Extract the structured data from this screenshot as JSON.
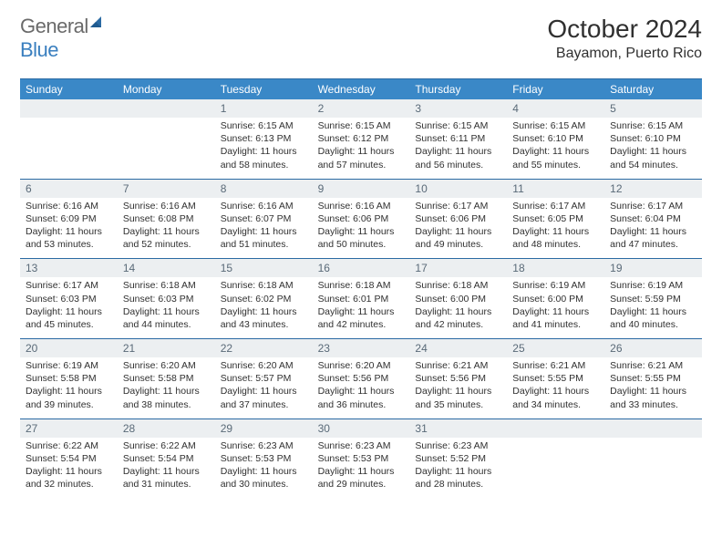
{
  "logo": {
    "word1": "General",
    "word2": "Blue",
    "icon_color": "#2b6aa3"
  },
  "title": "October 2024",
  "location": "Bayamon, Puerto Rico",
  "colors": {
    "header_bar": "#3a88c7",
    "header_border": "#2b6aa3",
    "daynum_bg": "#eceff1",
    "text": "#303030",
    "weekday_text": "#ffffff",
    "daynum_text": "#5a6a78"
  },
  "weekdays": [
    "Sunday",
    "Monday",
    "Tuesday",
    "Wednesday",
    "Thursday",
    "Friday",
    "Saturday"
  ],
  "weeks": [
    [
      {
        "num": "",
        "sunrise": "",
        "sunset": "",
        "daylight": ""
      },
      {
        "num": "",
        "sunrise": "",
        "sunset": "",
        "daylight": ""
      },
      {
        "num": "1",
        "sunrise": "Sunrise: 6:15 AM",
        "sunset": "Sunset: 6:13 PM",
        "daylight": "Daylight: 11 hours and 58 minutes."
      },
      {
        "num": "2",
        "sunrise": "Sunrise: 6:15 AM",
        "sunset": "Sunset: 6:12 PM",
        "daylight": "Daylight: 11 hours and 57 minutes."
      },
      {
        "num": "3",
        "sunrise": "Sunrise: 6:15 AM",
        "sunset": "Sunset: 6:11 PM",
        "daylight": "Daylight: 11 hours and 56 minutes."
      },
      {
        "num": "4",
        "sunrise": "Sunrise: 6:15 AM",
        "sunset": "Sunset: 6:10 PM",
        "daylight": "Daylight: 11 hours and 55 minutes."
      },
      {
        "num": "5",
        "sunrise": "Sunrise: 6:15 AM",
        "sunset": "Sunset: 6:10 PM",
        "daylight": "Daylight: 11 hours and 54 minutes."
      }
    ],
    [
      {
        "num": "6",
        "sunrise": "Sunrise: 6:16 AM",
        "sunset": "Sunset: 6:09 PM",
        "daylight": "Daylight: 11 hours and 53 minutes."
      },
      {
        "num": "7",
        "sunrise": "Sunrise: 6:16 AM",
        "sunset": "Sunset: 6:08 PM",
        "daylight": "Daylight: 11 hours and 52 minutes."
      },
      {
        "num": "8",
        "sunrise": "Sunrise: 6:16 AM",
        "sunset": "Sunset: 6:07 PM",
        "daylight": "Daylight: 11 hours and 51 minutes."
      },
      {
        "num": "9",
        "sunrise": "Sunrise: 6:16 AM",
        "sunset": "Sunset: 6:06 PM",
        "daylight": "Daylight: 11 hours and 50 minutes."
      },
      {
        "num": "10",
        "sunrise": "Sunrise: 6:17 AM",
        "sunset": "Sunset: 6:06 PM",
        "daylight": "Daylight: 11 hours and 49 minutes."
      },
      {
        "num": "11",
        "sunrise": "Sunrise: 6:17 AM",
        "sunset": "Sunset: 6:05 PM",
        "daylight": "Daylight: 11 hours and 48 minutes."
      },
      {
        "num": "12",
        "sunrise": "Sunrise: 6:17 AM",
        "sunset": "Sunset: 6:04 PM",
        "daylight": "Daylight: 11 hours and 47 minutes."
      }
    ],
    [
      {
        "num": "13",
        "sunrise": "Sunrise: 6:17 AM",
        "sunset": "Sunset: 6:03 PM",
        "daylight": "Daylight: 11 hours and 45 minutes."
      },
      {
        "num": "14",
        "sunrise": "Sunrise: 6:18 AM",
        "sunset": "Sunset: 6:03 PM",
        "daylight": "Daylight: 11 hours and 44 minutes."
      },
      {
        "num": "15",
        "sunrise": "Sunrise: 6:18 AM",
        "sunset": "Sunset: 6:02 PM",
        "daylight": "Daylight: 11 hours and 43 minutes."
      },
      {
        "num": "16",
        "sunrise": "Sunrise: 6:18 AM",
        "sunset": "Sunset: 6:01 PM",
        "daylight": "Daylight: 11 hours and 42 minutes."
      },
      {
        "num": "17",
        "sunrise": "Sunrise: 6:18 AM",
        "sunset": "Sunset: 6:00 PM",
        "daylight": "Daylight: 11 hours and 42 minutes."
      },
      {
        "num": "18",
        "sunrise": "Sunrise: 6:19 AM",
        "sunset": "Sunset: 6:00 PM",
        "daylight": "Daylight: 11 hours and 41 minutes."
      },
      {
        "num": "19",
        "sunrise": "Sunrise: 6:19 AM",
        "sunset": "Sunset: 5:59 PM",
        "daylight": "Daylight: 11 hours and 40 minutes."
      }
    ],
    [
      {
        "num": "20",
        "sunrise": "Sunrise: 6:19 AM",
        "sunset": "Sunset: 5:58 PM",
        "daylight": "Daylight: 11 hours and 39 minutes."
      },
      {
        "num": "21",
        "sunrise": "Sunrise: 6:20 AM",
        "sunset": "Sunset: 5:58 PM",
        "daylight": "Daylight: 11 hours and 38 minutes."
      },
      {
        "num": "22",
        "sunrise": "Sunrise: 6:20 AM",
        "sunset": "Sunset: 5:57 PM",
        "daylight": "Daylight: 11 hours and 37 minutes."
      },
      {
        "num": "23",
        "sunrise": "Sunrise: 6:20 AM",
        "sunset": "Sunset: 5:56 PM",
        "daylight": "Daylight: 11 hours and 36 minutes."
      },
      {
        "num": "24",
        "sunrise": "Sunrise: 6:21 AM",
        "sunset": "Sunset: 5:56 PM",
        "daylight": "Daylight: 11 hours and 35 minutes."
      },
      {
        "num": "25",
        "sunrise": "Sunrise: 6:21 AM",
        "sunset": "Sunset: 5:55 PM",
        "daylight": "Daylight: 11 hours and 34 minutes."
      },
      {
        "num": "26",
        "sunrise": "Sunrise: 6:21 AM",
        "sunset": "Sunset: 5:55 PM",
        "daylight": "Daylight: 11 hours and 33 minutes."
      }
    ],
    [
      {
        "num": "27",
        "sunrise": "Sunrise: 6:22 AM",
        "sunset": "Sunset: 5:54 PM",
        "daylight": "Daylight: 11 hours and 32 minutes."
      },
      {
        "num": "28",
        "sunrise": "Sunrise: 6:22 AM",
        "sunset": "Sunset: 5:54 PM",
        "daylight": "Daylight: 11 hours and 31 minutes."
      },
      {
        "num": "29",
        "sunrise": "Sunrise: 6:23 AM",
        "sunset": "Sunset: 5:53 PM",
        "daylight": "Daylight: 11 hours and 30 minutes."
      },
      {
        "num": "30",
        "sunrise": "Sunrise: 6:23 AM",
        "sunset": "Sunset: 5:53 PM",
        "daylight": "Daylight: 11 hours and 29 minutes."
      },
      {
        "num": "31",
        "sunrise": "Sunrise: 6:23 AM",
        "sunset": "Sunset: 5:52 PM",
        "daylight": "Daylight: 11 hours and 28 minutes."
      },
      {
        "num": "",
        "sunrise": "",
        "sunset": "",
        "daylight": ""
      },
      {
        "num": "",
        "sunrise": "",
        "sunset": "",
        "daylight": ""
      }
    ]
  ]
}
